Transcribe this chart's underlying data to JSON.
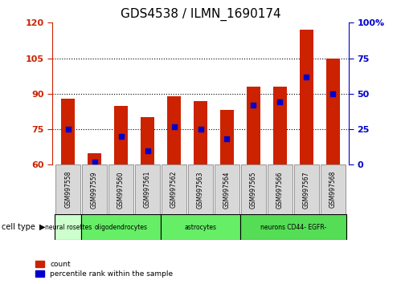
{
  "title": "GDS4538 / ILMN_1690174",
  "samples": [
    "GSM997558",
    "GSM997559",
    "GSM997560",
    "GSM997561",
    "GSM997562",
    "GSM997563",
    "GSM997564",
    "GSM997565",
    "GSM997566",
    "GSM997567",
    "GSM997568"
  ],
  "count_values": [
    88,
    65,
    85,
    80,
    89,
    87,
    83,
    93,
    93,
    117,
    105
  ],
  "percentile_values": [
    25,
    2,
    20,
    10,
    27,
    25,
    18,
    42,
    44,
    62,
    50
  ],
  "ylim_left": [
    60,
    120
  ],
  "ylim_right": [
    0,
    100
  ],
  "yticks_left": [
    60,
    75,
    90,
    105,
    120
  ],
  "yticks_right": [
    0,
    25,
    50,
    75,
    100
  ],
  "cell_types": [
    {
      "label": "neural rosettes",
      "start": 0,
      "end": 1
    },
    {
      "label": "oligodendrocytes",
      "start": 1,
      "end": 4
    },
    {
      "label": "astrocytes",
      "start": 4,
      "end": 7
    },
    {
      "label": "neurons CD44- EGFR-",
      "start": 7,
      "end": 11
    }
  ],
  "cell_type_colors": [
    "#ccffcc",
    "#66ee66",
    "#66ee66",
    "#55dd55"
  ],
  "bar_color": "#cc2200",
  "marker_color": "#0000cc",
  "bg_color": "#ffffff",
  "left_tick_color": "#cc2200",
  "right_tick_color": "#0000cc",
  "bar_width": 0.5,
  "figsize": [
    4.99,
    3.54
  ],
  "dpi": 100
}
